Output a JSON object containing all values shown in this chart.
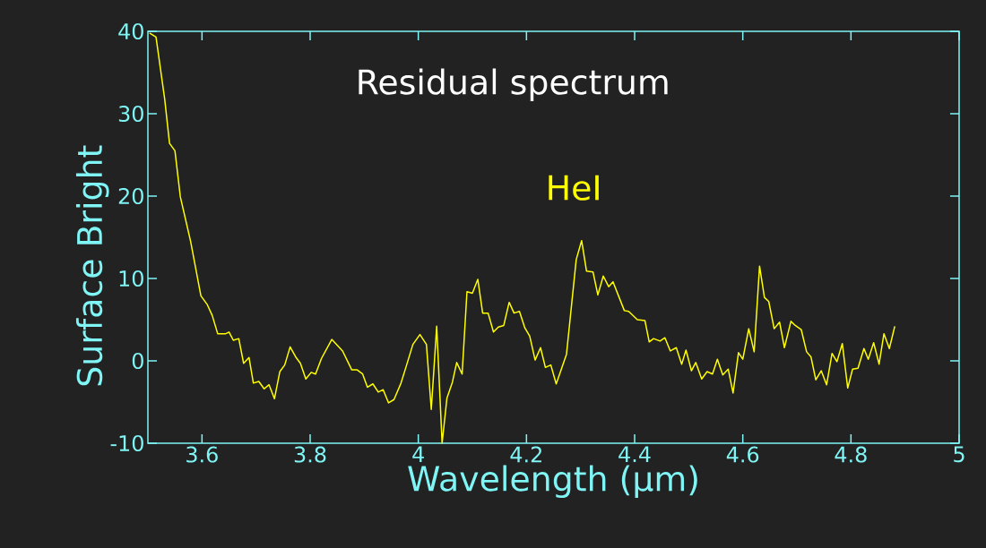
{
  "chart_data": {
    "type": "line",
    "xlabel": "Wavelength (μm)",
    "ylabel": "Surface Bright",
    "annotations": [
      "Residual spectrum",
      "HeI"
    ],
    "xlim": [
      3.5,
      5
    ],
    "ylim": [
      -10,
      40
    ],
    "xticks": [
      3.6,
      3.8,
      4,
      4.2,
      4.4,
      4.6,
      4.8,
      5
    ],
    "yticks": [
      -10,
      0,
      10,
      20,
      30,
      40
    ],
    "series": [
      {
        "color": "#ffff00",
        "x": [
          3.503,
          3.515,
          3.531,
          3.54,
          3.55,
          3.56,
          3.579,
          3.598,
          3.61,
          3.619,
          3.629,
          3.644,
          3.65,
          3.658,
          3.668,
          3.677,
          3.687,
          3.695,
          3.705,
          3.715,
          3.724,
          3.734,
          3.744,
          3.753,
          3.763,
          3.774,
          3.782,
          3.792,
          3.802,
          3.81,
          3.821,
          3.84,
          3.86,
          3.877,
          3.887,
          3.897,
          3.906,
          3.916,
          3.926,
          3.935,
          3.945,
          3.955,
          3.968,
          3.977,
          3.99,
          4.003,
          4.015,
          4.024,
          4.034,
          4.044,
          4.053,
          4.063,
          4.071,
          4.081,
          4.09,
          4.1,
          4.11,
          4.119,
          4.129,
          4.139,
          4.148,
          4.158,
          4.168,
          4.177,
          4.187,
          4.197,
          4.206,
          4.216,
          4.226,
          4.235,
          4.245,
          4.255,
          4.274,
          4.292,
          4.302,
          4.311,
          4.323,
          4.332,
          4.342,
          4.352,
          4.36,
          4.381,
          4.389,
          4.405,
          4.419,
          4.427,
          4.435,
          4.447,
          4.456,
          4.466,
          4.477,
          4.487,
          4.495,
          4.505,
          4.513,
          4.524,
          4.534,
          4.544,
          4.553,
          4.563,
          4.573,
          4.582,
          4.592,
          4.6,
          4.611,
          4.621,
          4.631,
          4.64,
          4.648,
          4.658,
          4.668,
          4.677,
          4.689,
          4.697,
          4.708,
          4.718,
          4.726,
          4.735,
          4.745,
          4.755,
          4.765,
          4.774,
          4.784,
          4.794,
          4.803,
          4.813,
          4.824,
          4.832,
          4.842,
          4.852,
          4.861,
          4.871,
          4.881
        ],
        "values": [
          39.8,
          39.3,
          31.8,
          26.4,
          25.5,
          19.9,
          14.5,
          7.9,
          6.8,
          5.5,
          3.3,
          3.3,
          3.5,
          2.5,
          2.7,
          -0.3,
          0.4,
          -2.7,
          -2.5,
          -3.4,
          -2.9,
          -4.6,
          -1.3,
          -0.5,
          1.7,
          0.4,
          -0.3,
          -2.2,
          -1.4,
          -1.6,
          0.3,
          2.6,
          1.2,
          -1.1,
          -1.1,
          -1.6,
          -3.2,
          -2.8,
          -3.8,
          -3.5,
          -5.1,
          -4.7,
          -2.7,
          -0.8,
          2.0,
          3.2,
          2.0,
          -5.9,
          4.2,
          -10,
          -4.5,
          -2.6,
          -0.2,
          -1.6,
          8.4,
          8.2,
          9.9,
          5.8,
          5.8,
          3.5,
          4.1,
          4.3,
          7.1,
          5.8,
          6.0,
          4.0,
          3.0,
          0.1,
          1.6,
          -0.8,
          -0.5,
          -2.8,
          0.8,
          12.3,
          14.6,
          10.9,
          10.8,
          8.0,
          10.3,
          9.0,
          9.6,
          6.1,
          6.0,
          5.0,
          4.9,
          2.3,
          2.7,
          2.4,
          2.8,
          1.2,
          1.6,
          -0.4,
          1.3,
          -1.2,
          -0.2,
          -2.2,
          -1.3,
          -1.6,
          0.2,
          -1.7,
          -1.0,
          -3.9,
          1.0,
          0.2,
          3.9,
          1.1,
          11.5,
          7.7,
          7.2,
          3.9,
          4.7,
          1.6,
          4.8,
          4.3,
          3.8,
          1.1,
          0.5,
          -2.3,
          -1.2,
          -2.9,
          0.9,
          -0.1,
          2.1,
          -3.3,
          -1.0,
          -0.9,
          1.5,
          0.2,
          2.2,
          -0.4,
          3.3,
          1.5,
          4.2
        ]
      }
    ]
  }
}
